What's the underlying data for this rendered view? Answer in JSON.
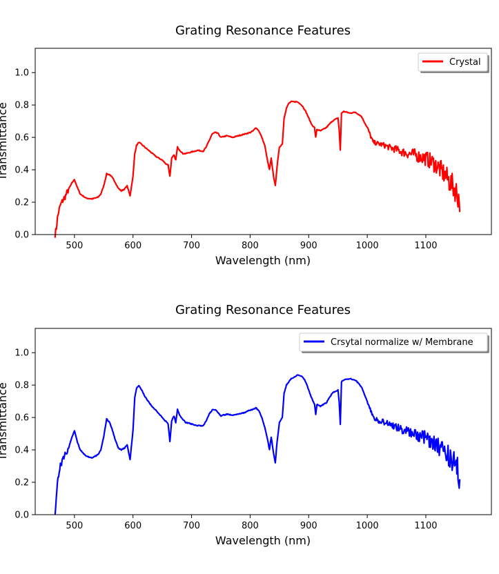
{
  "figure": {
    "background": "#ffffff"
  },
  "chart_data": [
    {
      "type": "line",
      "title": "Grating Resonance Features",
      "xlabel": "Wavelength (nm)",
      "ylabel": "Transmittance",
      "xlim": [
        433,
        1212
      ],
      "ylim": [
        0,
        1.15
      ],
      "xticks": [
        "500",
        "600",
        "700",
        "800",
        "900",
        "1000",
        "1100"
      ],
      "yticks": [
        "0.0",
        "0.2",
        "0.4",
        "0.6",
        "0.8",
        "1.0"
      ],
      "grid": false,
      "legend": {
        "placement": "top-right",
        "shadow": true
      },
      "series": [
        {
          "name": "Crystal",
          "color": "#ff0000",
          "noise_from_x": 1000,
          "x": [
            467,
            469,
            471,
            473,
            476,
            480,
            485,
            490,
            496,
            500,
            505,
            510,
            520,
            530,
            540,
            545,
            550,
            555,
            560,
            565,
            570,
            575,
            580,
            585,
            590,
            595,
            600,
            603,
            606,
            610,
            615,
            620,
            630,
            640,
            650,
            655,
            660,
            663,
            666,
            670,
            673,
            676,
            680,
            685,
            690,
            700,
            710,
            720,
            725,
            730,
            735,
            740,
            745,
            750,
            755,
            760,
            770,
            780,
            790,
            800,
            805,
            810,
            815,
            820,
            825,
            830,
            833,
            836,
            840,
            843,
            846,
            850,
            855,
            858,
            862,
            866,
            870,
            875,
            880,
            885,
            890,
            895,
            900,
            905,
            910,
            912,
            914,
            920,
            930,
            940,
            945,
            950,
            952,
            954,
            956,
            960,
            970,
            980,
            990,
            1000,
            1010,
            1020,
            1030,
            1040,
            1050,
            1060,
            1070,
            1080,
            1090,
            1100,
            1110,
            1120,
            1130,
            1140,
            1150,
            1155,
            1158
          ],
          "y": [
            0.0,
            0.04,
            0.1,
            0.14,
            0.18,
            0.21,
            0.24,
            0.28,
            0.32,
            0.34,
            0.29,
            0.25,
            0.225,
            0.22,
            0.23,
            0.25,
            0.3,
            0.375,
            0.37,
            0.35,
            0.32,
            0.285,
            0.27,
            0.28,
            0.3,
            0.24,
            0.36,
            0.5,
            0.55,
            0.57,
            0.555,
            0.54,
            0.51,
            0.48,
            0.46,
            0.44,
            0.43,
            0.36,
            0.47,
            0.49,
            0.46,
            0.54,
            0.52,
            0.5,
            0.5,
            0.51,
            0.52,
            0.515,
            0.54,
            0.58,
            0.62,
            0.63,
            0.625,
            0.6,
            0.605,
            0.61,
            0.6,
            0.61,
            0.62,
            0.63,
            0.64,
            0.66,
            0.64,
            0.6,
            0.55,
            0.45,
            0.4,
            0.47,
            0.36,
            0.3,
            0.42,
            0.54,
            0.56,
            0.72,
            0.78,
            0.81,
            0.82,
            0.82,
            0.82,
            0.81,
            0.79,
            0.76,
            0.72,
            0.68,
            0.66,
            0.6,
            0.65,
            0.64,
            0.66,
            0.7,
            0.71,
            0.72,
            0.65,
            0.52,
            0.75,
            0.76,
            0.75,
            0.755,
            0.73,
            0.66,
            0.57,
            0.56,
            0.55,
            0.535,
            0.525,
            0.51,
            0.5,
            0.495,
            0.48,
            0.47,
            0.45,
            0.42,
            0.38,
            0.33,
            0.28,
            0.24,
            0.2
          ]
        }
      ]
    },
    {
      "type": "line",
      "title": "Grating Resonance Features",
      "xlabel": "Wavelength (nm)",
      "ylabel": "Transmittance",
      "xlim": [
        433,
        1212
      ],
      "ylim": [
        0,
        1.15
      ],
      "xticks": [
        "500",
        "600",
        "700",
        "800",
        "900",
        "1000",
        "1100"
      ],
      "yticks": [
        "0.0",
        "0.2",
        "0.4",
        "0.6",
        "0.8",
        "1.0"
      ],
      "grid": false,
      "legend": {
        "placement": "top-right",
        "shadow": true
      },
      "series": [
        {
          "name": "Crsytal normalize w/ Membrane",
          "color": "#0000ff",
          "noise_from_x": 1000,
          "x": [
            467,
            469,
            471,
            473,
            476,
            480,
            485,
            490,
            496,
            500,
            505,
            510,
            520,
            530,
            540,
            545,
            550,
            555,
            560,
            565,
            570,
            575,
            580,
            585,
            590,
            595,
            600,
            603,
            606,
            610,
            615,
            620,
            630,
            640,
            650,
            655,
            660,
            663,
            666,
            670,
            673,
            676,
            680,
            685,
            690,
            700,
            710,
            720,
            725,
            730,
            735,
            740,
            745,
            750,
            755,
            760,
            770,
            780,
            790,
            800,
            805,
            810,
            815,
            820,
            825,
            830,
            833,
            836,
            840,
            843,
            846,
            850,
            855,
            858,
            862,
            866,
            870,
            875,
            880,
            885,
            890,
            895,
            900,
            905,
            910,
            912,
            914,
            920,
            930,
            940,
            945,
            950,
            952,
            954,
            956,
            960,
            970,
            980,
            990,
            1000,
            1010,
            1020,
            1030,
            1040,
            1050,
            1060,
            1070,
            1080,
            1090,
            1100,
            1110,
            1120,
            1130,
            1140,
            1150,
            1155,
            1158
          ],
          "y": [
            0.02,
            0.1,
            0.2,
            0.25,
            0.3,
            0.34,
            0.38,
            0.41,
            0.48,
            0.52,
            0.45,
            0.4,
            0.36,
            0.35,
            0.37,
            0.4,
            0.48,
            0.59,
            0.57,
            0.52,
            0.46,
            0.41,
            0.4,
            0.41,
            0.43,
            0.34,
            0.52,
            0.72,
            0.78,
            0.8,
            0.77,
            0.73,
            0.68,
            0.64,
            0.6,
            0.58,
            0.56,
            0.45,
            0.58,
            0.61,
            0.57,
            0.65,
            0.61,
            0.59,
            0.57,
            0.56,
            0.55,
            0.55,
            0.58,
            0.62,
            0.645,
            0.65,
            0.63,
            0.61,
            0.615,
            0.62,
            0.615,
            0.62,
            0.63,
            0.645,
            0.65,
            0.66,
            0.64,
            0.6,
            0.54,
            0.46,
            0.4,
            0.48,
            0.38,
            0.32,
            0.45,
            0.57,
            0.6,
            0.75,
            0.8,
            0.82,
            0.84,
            0.85,
            0.86,
            0.86,
            0.85,
            0.82,
            0.77,
            0.72,
            0.68,
            0.62,
            0.68,
            0.67,
            0.69,
            0.75,
            0.76,
            0.77,
            0.7,
            0.56,
            0.82,
            0.83,
            0.84,
            0.83,
            0.79,
            0.7,
            0.6,
            0.58,
            0.57,
            0.555,
            0.54,
            0.525,
            0.515,
            0.5,
            0.49,
            0.475,
            0.455,
            0.43,
            0.4,
            0.36,
            0.31,
            0.27,
            0.23
          ]
        }
      ]
    }
  ]
}
